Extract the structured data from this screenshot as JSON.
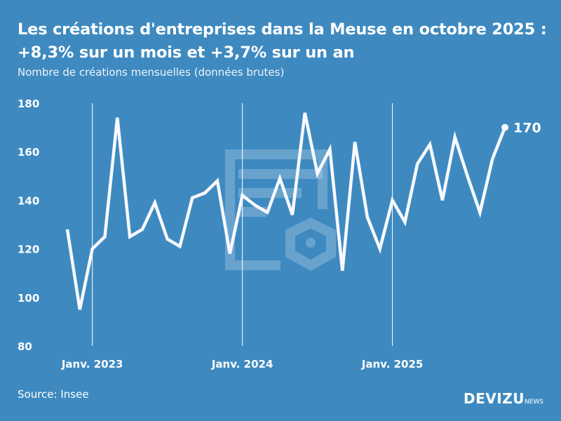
{
  "title_line1": "Les créations d'entreprises dans la Meuse en octobre 2025 :",
  "title_line2": "+8,3% sur un mois et +3,7% sur un an",
  "subtitle": "Nombre de créations mensuelles (données brutes)",
  "source": "Source: Insee",
  "logo": {
    "main": "DEVIZU",
    "sub": "NEWS"
  },
  "colors": {
    "background": "#3e8ac0",
    "line": "#f8f9ff"
  },
  "chart_data": {
    "type": "line",
    "x": [
      "2022-11",
      "2022-12",
      "2023-01",
      "2023-02",
      "2023-03",
      "2023-04",
      "2023-05",
      "2023-06",
      "2023-07",
      "2023-08",
      "2023-09",
      "2023-10",
      "2023-11",
      "2023-12",
      "2024-01",
      "2024-02",
      "2024-03",
      "2024-04",
      "2024-05",
      "2024-06",
      "2024-07",
      "2024-08",
      "2024-09",
      "2024-10",
      "2024-11",
      "2024-12",
      "2025-01",
      "2025-02",
      "2025-03",
      "2025-04",
      "2025-05",
      "2025-06",
      "2025-07",
      "2025-08",
      "2025-09",
      "2025-10"
    ],
    "values": [
      128,
      95,
      120,
      125,
      174,
      125,
      128,
      139,
      124,
      121,
      141,
      143,
      148,
      118,
      142,
      138,
      135,
      149,
      134,
      176,
      151,
      161,
      111,
      164,
      133,
      120,
      140,
      131,
      155,
      163,
      140,
      166,
      150,
      135,
      157,
      170
    ],
    "ylim": [
      80,
      180
    ],
    "yticks": [
      "80",
      "100",
      "120",
      "140",
      "160",
      "180"
    ],
    "xticks": [
      {
        "label": "Janv. 2023",
        "x": "2023-01"
      },
      {
        "label": "Janv. 2024",
        "x": "2024-01"
      },
      {
        "label": "Janv. 2025",
        "x": "2025-01"
      }
    ],
    "last_label": "170",
    "grid": "vertical lines at January"
  }
}
